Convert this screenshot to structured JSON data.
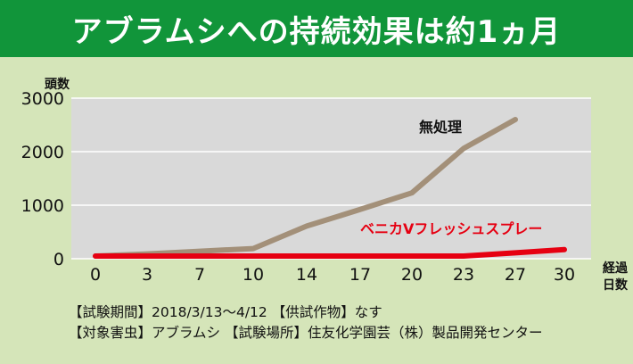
{
  "banner": {
    "title": "アブラムシへの持続効果は約1ヵ月"
  },
  "colors": {
    "banner_bg": "#11953a",
    "page_bg": "#d5e5b9",
    "plot_bg": "#d9d9d9",
    "untreated": "#a39079",
    "treated": "#e60012"
  },
  "chart_data": {
    "type": "line",
    "title": "",
    "ylabel": "頭数",
    "xlabel": [
      "経過",
      "日数"
    ],
    "x": [
      0,
      3,
      7,
      10,
      14,
      17,
      20,
      23,
      27,
      30
    ],
    "ylim": [
      0,
      3000
    ],
    "yticks": [
      0,
      1000,
      2000,
      3000
    ],
    "grid": true,
    "series": [
      {
        "name": "無処理",
        "color_key": "untreated",
        "x": [
          0,
          3,
          7,
          10,
          14,
          17,
          20,
          23,
          27
        ],
        "values": [
          50,
          90,
          140,
          190,
          610,
          920,
          1230,
          2060,
          2600
        ]
      },
      {
        "name": "ベニカVフレッシュスプレー",
        "color_key": "treated",
        "x": [
          0,
          3,
          7,
          10,
          14,
          17,
          20,
          23,
          27,
          30
        ],
        "values": [
          50,
          50,
          50,
          50,
          50,
          50,
          50,
          50,
          110,
          170
        ]
      }
    ]
  },
  "notes": {
    "line1": "【試験期間】2018/3/13〜4/12 【供試作物】なす",
    "line2": "【対象害虫】アブラムシ 【試験場所】住友化学園芸（株）製品開発センター"
  }
}
